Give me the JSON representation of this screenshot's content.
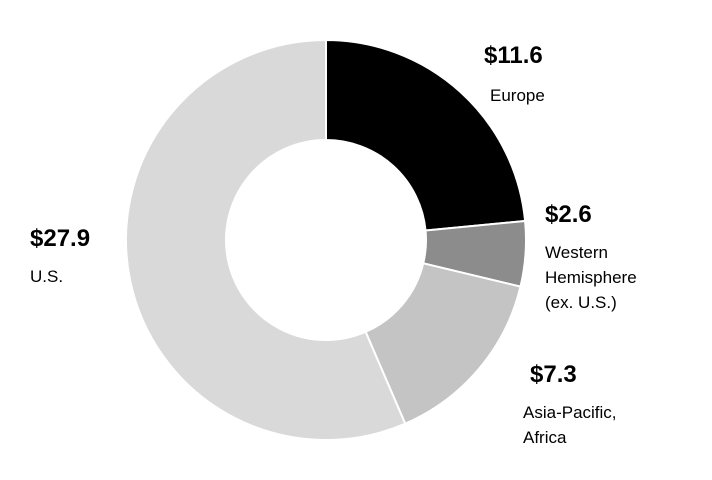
{
  "chart_data": {
    "type": "donut",
    "categories": [
      "Europe",
      "Western\nHemisphere\n(ex. U.S.)",
      "Asia-Pacific,\nAfrica",
      "U.S."
    ],
    "values": [
      11.6,
      2.6,
      7.3,
      27.9
    ],
    "value_labels": [
      "$11.6",
      "$2.6",
      "$7.3",
      "$27.9"
    ],
    "colors": [
      "#000000",
      "#8c8c8c",
      "#c4c4c4",
      "#d9d9d9"
    ]
  }
}
